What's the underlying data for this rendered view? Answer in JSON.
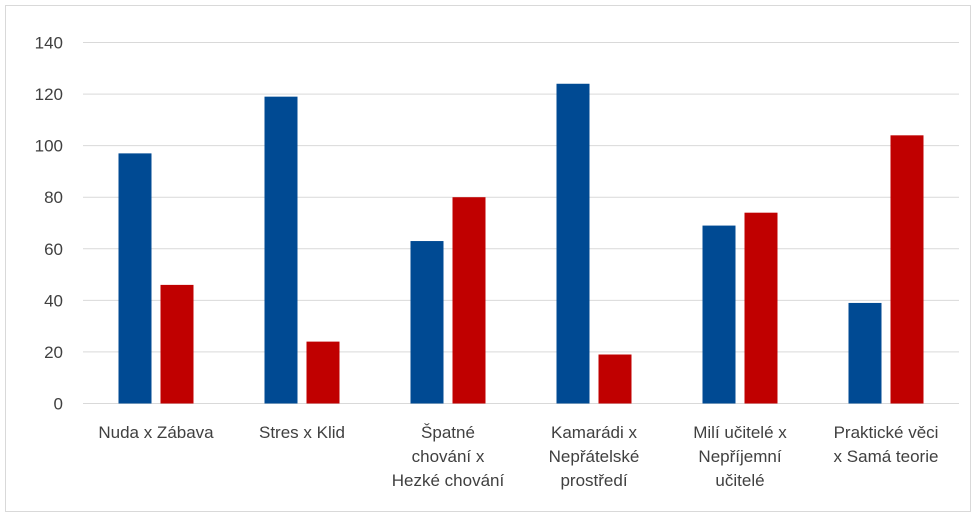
{
  "chart_data": {
    "type": "bar",
    "title": "",
    "xlabel": "",
    "ylabel": "",
    "ylim": [
      0,
      140
    ],
    "yticks": [
      0,
      20,
      40,
      60,
      80,
      100,
      120,
      140
    ],
    "grid": true,
    "legend": "none",
    "categories": [
      [
        "Nuda x Zábava"
      ],
      [
        "Stres x Klid"
      ],
      [
        "Špatné",
        "chování x",
        "Hezké chování"
      ],
      [
        "Kamarádi x",
        "Nepřátelské",
        "prostředí"
      ],
      [
        "Milí učitelé x",
        "Nepříjemní",
        "učitelé"
      ],
      [
        "Praktické věci",
        "x Samá teorie"
      ]
    ],
    "series": [
      {
        "color": "#004A93",
        "values": [
          97,
          119,
          63,
          124,
          69,
          39
        ]
      },
      {
        "color": "#C00000",
        "values": [
          46,
          24,
          80,
          19,
          74,
          104
        ]
      }
    ]
  }
}
